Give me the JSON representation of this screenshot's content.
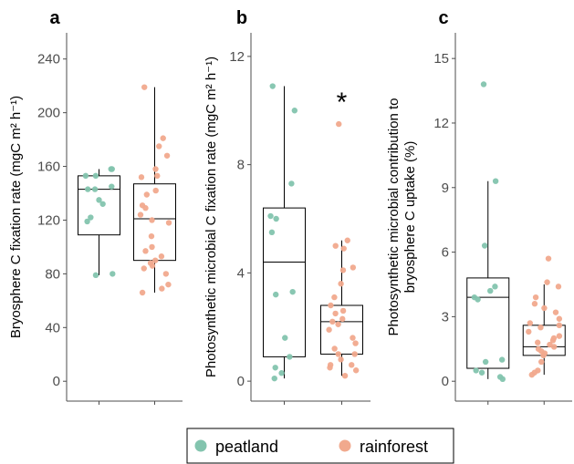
{
  "colors": {
    "peatland": "#83c4ae",
    "rainforest": "#f1a98d",
    "axis": "#4d4d4d"
  },
  "legend": {
    "entries": [
      {
        "key": "peatland",
        "label": "peatland"
      },
      {
        "key": "rainforest",
        "label": "rainforest"
      }
    ]
  },
  "chart_data": [
    {
      "type": "box",
      "panel": "a",
      "ylabel": "Bryosphere C fixation rate (mgC m² h⁻¹)",
      "ylim": [
        -8,
        250
      ],
      "yticks": [
        0,
        40,
        80,
        120,
        160,
        200,
        240
      ],
      "significance": "",
      "series": [
        {
          "name": "peatland",
          "box": {
            "q1": 109,
            "median": 143,
            "q3": 153,
            "whisker_low": 79,
            "whisker_high": 158
          },
          "points": [
            158,
            158,
            153,
            153,
            145,
            143,
            143,
            135,
            132,
            122,
            119,
            80,
            79
          ]
        },
        {
          "name": "rainforest",
          "box": {
            "q1": 90,
            "median": 121,
            "q3": 147,
            "whisker_low": 66,
            "whisker_high": 219
          },
          "points": [
            219,
            181,
            175,
            168,
            158,
            153,
            152,
            142,
            139,
            131,
            129,
            124,
            120,
            118,
            108,
            100,
            97,
            93,
            90,
            88,
            86,
            84,
            80,
            72,
            69,
            66
          ]
        }
      ]
    },
    {
      "type": "box",
      "panel": "b",
      "ylabel": "Photosynthetic microbial C fixation rate (mgC m² h⁻¹)",
      "ylim": [
        -0.4,
        12.4
      ],
      "yticks": [
        0,
        4,
        8,
        12
      ],
      "significance": "*",
      "series": [
        {
          "name": "peatland",
          "box": {
            "q1": 0.9,
            "median": 4.4,
            "q3": 6.4,
            "whisker_low": 0.1,
            "whisker_high": 10.9
          },
          "points": [
            10.9,
            10.0,
            7.3,
            6.1,
            6.0,
            5.5,
            3.3,
            3.2,
            1.6,
            0.9,
            0.5,
            0.3,
            0.1
          ]
        },
        {
          "name": "rainforest",
          "box": {
            "q1": 1.0,
            "median": 2.2,
            "q3": 2.8,
            "whisker_low": 0.2,
            "whisker_high": 5.2
          },
          "points": [
            9.5,
            5.2,
            5.0,
            4.9,
            4.2,
            4.1,
            3.6,
            3.1,
            2.8,
            2.6,
            2.5,
            2.3,
            2.2,
            2.1,
            1.9,
            1.6,
            1.4,
            1.2,
            1.0,
            1.0,
            0.8,
            0.6,
            0.6,
            0.5,
            0.4,
            0.2
          ]
        }
      ]
    },
    {
      "type": "box",
      "panel": "c",
      "ylabel": "Photosynthetic microbial contribution to bryosphere C uptake (%)",
      "ylim": [
        -0.5,
        15.6
      ],
      "yticks": [
        0,
        3,
        6,
        9,
        12,
        15
      ],
      "significance": "",
      "series": [
        {
          "name": "peatland",
          "box": {
            "q1": 0.6,
            "median": 3.9,
            "q3": 4.8,
            "whisker_low": 0.1,
            "whisker_high": 9.3
          },
          "points": [
            13.8,
            9.3,
            6.3,
            4.4,
            4.2,
            3.9,
            3.8,
            1.0,
            0.9,
            0.5,
            0.4,
            0.2,
            0.1
          ]
        },
        {
          "name": "rainforest",
          "box": {
            "q1": 1.2,
            "median": 1.6,
            "q3": 2.6,
            "whisker_low": 0.3,
            "whisker_high": 4.5
          },
          "points": [
            5.7,
            4.6,
            4.4,
            3.9,
            3.6,
            3.4,
            3.2,
            2.9,
            2.7,
            2.6,
            2.5,
            2.3,
            2.1,
            2.0,
            1.9,
            1.8,
            1.7,
            1.6,
            1.5,
            1.4,
            1.3,
            1.2,
            0.9,
            0.5,
            0.4,
            0.3
          ]
        }
      ]
    }
  ]
}
